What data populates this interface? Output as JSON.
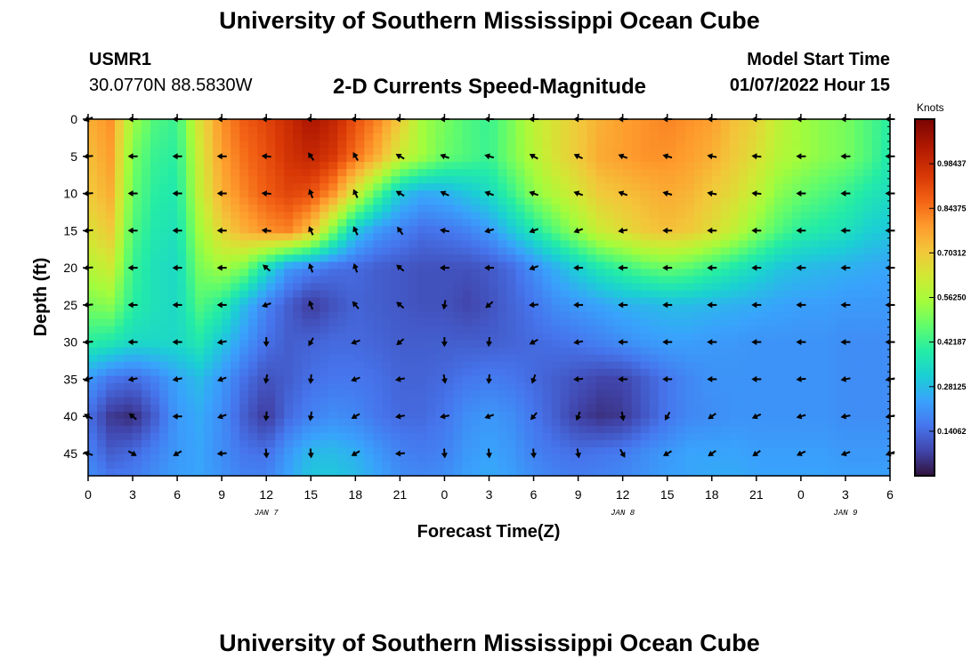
{
  "header": {
    "title": "University of Southern Mississippi Ocean Cube",
    "station_id": "USMR1",
    "station_coords": "30.0770N  88.5830W",
    "subtitle": "2-D Currents Speed-Magnitude",
    "model_label": "Model Start Time",
    "model_time": "01/07/2022 Hour 15"
  },
  "footer": {
    "title": "University of Southern Mississippi Ocean Cube"
  },
  "chart_data": {
    "type": "heatmap",
    "xlabel": "Forecast Time(Z)",
    "ylabel": "Depth (ft)",
    "x_range": [
      0,
      54
    ],
    "y_range": [
      0,
      48
    ],
    "y_inverted": true,
    "x_ticks": [
      {
        "h": 0,
        "label": "0"
      },
      {
        "h": 3,
        "label": "3"
      },
      {
        "h": 6,
        "label": "6"
      },
      {
        "h": 9,
        "label": "9"
      },
      {
        "h": 12,
        "label": "12"
      },
      {
        "h": 15,
        "label": "15"
      },
      {
        "h": 18,
        "label": "18"
      },
      {
        "h": 21,
        "label": "21"
      },
      {
        "h": 24,
        "label": "0"
      },
      {
        "h": 27,
        "label": "3"
      },
      {
        "h": 30,
        "label": "6"
      },
      {
        "h": 33,
        "label": "9"
      },
      {
        "h": 36,
        "label": "12"
      },
      {
        "h": 39,
        "label": "15"
      },
      {
        "h": 42,
        "label": "18"
      },
      {
        "h": 45,
        "label": "21"
      },
      {
        "h": 48,
        "label": "0"
      },
      {
        "h": 51,
        "label": "3"
      },
      {
        "h": 54,
        "label": "6"
      }
    ],
    "date_labels": [
      {
        "h": 12,
        "label": "JAN 7"
      },
      {
        "h": 36,
        "label": "JAN 8"
      },
      {
        "h": 51,
        "label": "JAN 9"
      }
    ],
    "y_ticks": [
      0,
      5,
      10,
      15,
      20,
      25,
      30,
      35,
      40,
      45
    ],
    "colorbar": {
      "unit": "Knots",
      "range": [
        0,
        1.125
      ],
      "labels": [
        "0.98437",
        "0.84375",
        "0.70312",
        "0.56250",
        "0.42187",
        "0.28125",
        "0.14062"
      ],
      "label_values": [
        0.98437,
        0.84375,
        0.70312,
        0.5625,
        0.42187,
        0.28125,
        0.14062
      ]
    },
    "speed_hours": [
      0,
      1.5,
      3,
      4.5,
      6,
      7.5,
      9,
      10.5,
      12,
      13.5,
      15,
      16.5,
      18,
      19.5,
      21,
      22.5,
      24,
      25.5,
      27,
      28.5,
      30,
      31.5,
      33,
      34.5,
      36,
      37.5,
      39,
      40.5,
      42,
      43.5,
      45,
      46.5,
      48,
      49.5,
      51,
      52.5,
      54
    ],
    "speed_depths": [
      0,
      5,
      10,
      15,
      20,
      25,
      30,
      35,
      40,
      45,
      48
    ],
    "speed": [
      [
        0.75,
        0.8,
        0.55,
        0.45,
        0.42,
        0.65,
        0.8,
        0.88,
        0.92,
        0.98,
        1.05,
        1.0,
        0.9,
        0.82,
        0.7,
        0.55,
        0.5,
        0.45,
        0.42,
        0.5,
        0.6,
        0.65,
        0.7,
        0.75,
        0.78,
        0.8,
        0.82,
        0.8,
        0.78,
        0.72,
        0.68,
        0.6,
        0.55,
        0.52,
        0.5,
        0.45,
        0.4
      ],
      [
        0.72,
        0.78,
        0.5,
        0.42,
        0.4,
        0.62,
        0.78,
        0.85,
        0.9,
        0.96,
        1.0,
        0.95,
        0.85,
        0.75,
        0.62,
        0.55,
        0.48,
        0.45,
        0.42,
        0.5,
        0.58,
        0.65,
        0.7,
        0.76,
        0.78,
        0.8,
        0.8,
        0.78,
        0.75,
        0.7,
        0.65,
        0.58,
        0.55,
        0.52,
        0.5,
        0.45,
        0.38
      ],
      [
        0.7,
        0.75,
        0.48,
        0.4,
        0.38,
        0.6,
        0.75,
        0.82,
        0.88,
        0.92,
        0.9,
        0.8,
        0.62,
        0.45,
        0.3,
        0.25,
        0.26,
        0.3,
        0.34,
        0.42,
        0.52,
        0.58,
        0.64,
        0.7,
        0.72,
        0.74,
        0.76,
        0.74,
        0.7,
        0.66,
        0.6,
        0.52,
        0.48,
        0.45,
        0.42,
        0.38,
        0.35
      ],
      [
        0.65,
        0.7,
        0.45,
        0.38,
        0.36,
        0.55,
        0.68,
        0.75,
        0.8,
        0.82,
        0.72,
        0.5,
        0.3,
        0.22,
        0.18,
        0.15,
        0.16,
        0.18,
        0.22,
        0.3,
        0.38,
        0.46,
        0.54,
        0.62,
        0.66,
        0.7,
        0.72,
        0.7,
        0.66,
        0.6,
        0.52,
        0.45,
        0.4,
        0.38,
        0.36,
        0.32,
        0.3
      ],
      [
        0.58,
        0.62,
        0.42,
        0.36,
        0.34,
        0.5,
        0.55,
        0.5,
        0.35,
        0.22,
        0.18,
        0.15,
        0.14,
        0.12,
        0.11,
        0.1,
        0.1,
        0.1,
        0.11,
        0.14,
        0.2,
        0.26,
        0.32,
        0.38,
        0.42,
        0.46,
        0.48,
        0.46,
        0.42,
        0.38,
        0.34,
        0.3,
        0.28,
        0.27,
        0.26,
        0.25,
        0.24
      ],
      [
        0.5,
        0.52,
        0.4,
        0.36,
        0.34,
        0.45,
        0.4,
        0.28,
        0.18,
        0.12,
        0.06,
        0.1,
        0.13,
        0.12,
        0.11,
        0.1,
        0.1,
        0.08,
        0.1,
        0.13,
        0.16,
        0.2,
        0.22,
        0.24,
        0.26,
        0.27,
        0.28,
        0.28,
        0.27,
        0.26,
        0.25,
        0.24,
        0.23,
        0.23,
        0.22,
        0.22,
        0.22
      ],
      [
        0.4,
        0.38,
        0.34,
        0.34,
        0.34,
        0.38,
        0.3,
        0.22,
        0.15,
        0.12,
        0.13,
        0.14,
        0.14,
        0.13,
        0.12,
        0.12,
        0.12,
        0.12,
        0.12,
        0.13,
        0.14,
        0.15,
        0.16,
        0.18,
        0.2,
        0.22,
        0.23,
        0.23,
        0.22,
        0.22,
        0.21,
        0.21,
        0.21,
        0.21,
        0.2,
        0.2,
        0.2
      ],
      [
        0.22,
        0.16,
        0.14,
        0.18,
        0.24,
        0.28,
        0.22,
        0.15,
        0.1,
        0.12,
        0.15,
        0.16,
        0.16,
        0.15,
        0.13,
        0.13,
        0.14,
        0.16,
        0.17,
        0.16,
        0.14,
        0.12,
        0.1,
        0.08,
        0.08,
        0.12,
        0.16,
        0.19,
        0.21,
        0.21,
        0.21,
        0.21,
        0.21,
        0.21,
        0.2,
        0.2,
        0.2
      ],
      [
        0.15,
        0.06,
        0.04,
        0.12,
        0.22,
        0.25,
        0.2,
        0.12,
        0.06,
        0.14,
        0.18,
        0.2,
        0.19,
        0.16,
        0.14,
        0.14,
        0.16,
        0.2,
        0.22,
        0.2,
        0.16,
        0.12,
        0.07,
        0.05,
        0.06,
        0.11,
        0.16,
        0.19,
        0.2,
        0.21,
        0.21,
        0.21,
        0.21,
        0.21,
        0.2,
        0.2,
        0.2
      ],
      [
        0.18,
        0.12,
        0.14,
        0.18,
        0.22,
        0.24,
        0.2,
        0.16,
        0.15,
        0.22,
        0.28,
        0.28,
        0.26,
        0.22,
        0.18,
        0.17,
        0.18,
        0.22,
        0.24,
        0.22,
        0.18,
        0.16,
        0.15,
        0.16,
        0.17,
        0.2,
        0.22,
        0.24,
        0.24,
        0.24,
        0.23,
        0.23,
        0.23,
        0.23,
        0.22,
        0.22,
        0.22
      ],
      [
        0.2,
        0.16,
        0.17,
        0.2,
        0.23,
        0.24,
        0.21,
        0.18,
        0.18,
        0.24,
        0.3,
        0.3,
        0.28,
        0.24,
        0.2,
        0.19,
        0.2,
        0.23,
        0.25,
        0.23,
        0.2,
        0.18,
        0.17,
        0.18,
        0.19,
        0.21,
        0.23,
        0.24,
        0.25,
        0.25,
        0.24,
        0.24,
        0.24,
        0.24,
        0.23,
        0.23,
        0.23
      ]
    ],
    "vector_hours": [
      0,
      3,
      6,
      9,
      12,
      15,
      18,
      21,
      24,
      27,
      30,
      33,
      36,
      39,
      42,
      45,
      48,
      51,
      54
    ],
    "vector_depths": [
      0,
      5,
      10,
      15,
      20,
      25,
      30,
      35,
      40,
      45
    ],
    "vector_direction_deg": [
      [
        200,
        180,
        180,
        180,
        180,
        180,
        180,
        180,
        180,
        180,
        180,
        180,
        180,
        180,
        180,
        180,
        180,
        180,
        180
      ],
      [
        185,
        180,
        180,
        180,
        175,
        125,
        120,
        150,
        160,
        165,
        150,
        155,
        160,
        165,
        170,
        175,
        180,
        180,
        180
      ],
      [
        185,
        180,
        180,
        180,
        175,
        110,
        115,
        150,
        155,
        160,
        160,
        160,
        160,
        165,
        170,
        175,
        180,
        180,
        180
      ],
      [
        185,
        180,
        180,
        180,
        175,
        115,
        115,
        125,
        170,
        195,
        200,
        200,
        190,
        180,
        180,
        180,
        180,
        180,
        180
      ],
      [
        185,
        180,
        180,
        180,
        140,
        110,
        110,
        140,
        180,
        180,
        200,
        180,
        180,
        180,
        180,
        180,
        180,
        180,
        180
      ],
      [
        185,
        180,
        180,
        180,
        200,
        110,
        130,
        140,
        260,
        220,
        185,
        180,
        180,
        180,
        180,
        180,
        180,
        180,
        180
      ],
      [
        185,
        180,
        180,
        190,
        270,
        240,
        200,
        220,
        270,
        265,
        210,
        190,
        180,
        180,
        180,
        180,
        180,
        180,
        180
      ],
      [
        200,
        190,
        190,
        200,
        260,
        265,
        200,
        190,
        280,
        265,
        250,
        185,
        180,
        180,
        180,
        180,
        185,
        190,
        190
      ],
      [
        150,
        140,
        180,
        200,
        265,
        260,
        210,
        190,
        190,
        200,
        230,
        250,
        280,
        240,
        215,
        205,
        195,
        190,
        190
      ],
      [
        160,
        330,
        210,
        185,
        275,
        275,
        210,
        185,
        275,
        275,
        275,
        280,
        300,
        210,
        215,
        215,
        205,
        200,
        200
      ]
    ]
  }
}
